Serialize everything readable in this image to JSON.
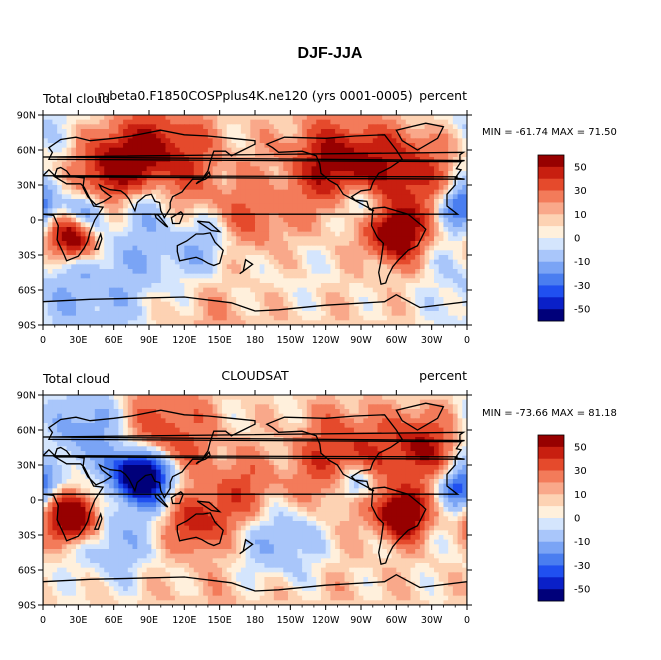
{
  "figure_title": "DJF-JJA",
  "chart_data": [
    {
      "type": "heatmap",
      "title_left": "Total cloud",
      "title_center": "n.beta0.F1850COSPplus4K.ne120 (yrs 0001-0005)",
      "title_right": "percent",
      "minmax_text": "MIN = -61.74 MAX =  71.50",
      "min": -61.74,
      "max": 71.5,
      "x_ticks": [
        "0",
        "30E",
        "60E",
        "90E",
        "120E",
        "150E",
        "180",
        "150W",
        "120W",
        "90W",
        "60W",
        "30W",
        "0"
      ],
      "y_ticks": [
        "90N",
        "60N",
        "30N",
        "0",
        "30S",
        "60S",
        "90S"
      ],
      "xlim": [
        0,
        360
      ],
      "ylim": [
        -90,
        90
      ],
      "colorbar_labels": [
        "50",
        "30",
        "10",
        "0",
        "-10",
        "-30",
        "-50"
      ],
      "contour_levels": [
        -60,
        -50,
        -40,
        -30,
        -20,
        -10,
        -5,
        0,
        5,
        10,
        20,
        30,
        40,
        50,
        60
      ],
      "anomalies": [
        {
          "lon": 95,
          "lat": 52,
          "r": 32,
          "v": 45
        },
        {
          "lon": 60,
          "lat": 42,
          "r": 22,
          "v": 40
        },
        {
          "lon": 250,
          "lat": 48,
          "r": 28,
          "v": 45
        },
        {
          "lon": 310,
          "lat": 42,
          "r": 28,
          "v": 40
        },
        {
          "lon": 25,
          "lat": -15,
          "r": 14,
          "v": 65
        },
        {
          "lon": 300,
          "lat": -12,
          "r": 16,
          "v": 60
        },
        {
          "lon": 175,
          "lat": 0,
          "r": 22,
          "v": 20
        },
        {
          "lon": 85,
          "lat": 20,
          "r": 18,
          "v": -35
        },
        {
          "lon": 35,
          "lat": 5,
          "r": 12,
          "v": -30
        },
        {
          "lon": 270,
          "lat": 15,
          "r": 14,
          "v": -35
        },
        {
          "lon": 355,
          "lat": 12,
          "r": 12,
          "v": -40
        },
        {
          "lon": 140,
          "lat": -20,
          "r": 20,
          "v": -20
        },
        {
          "lon": 100,
          "lat": -25,
          "r": 25,
          "v": -15
        },
        {
          "lon": 40,
          "lat": -60,
          "r": 40,
          "v": -20
        },
        {
          "lon": 200,
          "lat": -55,
          "r": 40,
          "v": -15
        },
        {
          "lon": 180,
          "lat": -75,
          "r": 60,
          "v": 15
        },
        {
          "lon": 0,
          "lat": 80,
          "r": 60,
          "v": -10
        }
      ]
    },
    {
      "type": "heatmap",
      "title_left": "Total cloud",
      "title_center": "CLOUDSAT",
      "title_right": "percent",
      "minmax_text": "MIN = -73.66 MAX =  81.18",
      "min": -73.66,
      "max": 81.18,
      "x_ticks": [
        "0",
        "30E",
        "60E",
        "90E",
        "120E",
        "150E",
        "180",
        "150W",
        "120W",
        "90W",
        "60W",
        "30W",
        "0"
      ],
      "y_ticks": [
        "90N",
        "60N",
        "30N",
        "0",
        "30S",
        "60S",
        "90S"
      ],
      "xlim": [
        0,
        360
      ],
      "ylim": [
        -90,
        90
      ],
      "colorbar_labels": [
        "50",
        "30",
        "10",
        "0",
        "-10",
        "-30",
        "-50"
      ],
      "contour_levels": [
        -60,
        -50,
        -40,
        -30,
        -20,
        -10,
        -5,
        0,
        5,
        10,
        20,
        30,
        40,
        50,
        60
      ],
      "anomalies": [
        {
          "lon": 90,
          "lat": 18,
          "r": 16,
          "v": -65
        },
        {
          "lon": 75,
          "lat": 25,
          "r": 14,
          "v": -50
        },
        {
          "lon": 25,
          "lat": -15,
          "r": 14,
          "v": 75
        },
        {
          "lon": 305,
          "lat": -12,
          "r": 14,
          "v": 70
        },
        {
          "lon": 130,
          "lat": -20,
          "r": 16,
          "v": 35
        },
        {
          "lon": 100,
          "lat": 55,
          "r": 30,
          "v": 30
        },
        {
          "lon": 40,
          "lat": 60,
          "r": 25,
          "v": -30
        },
        {
          "lon": 255,
          "lat": 35,
          "r": 28,
          "v": 35
        },
        {
          "lon": 320,
          "lat": 45,
          "r": 20,
          "v": 40
        },
        {
          "lon": 170,
          "lat": 5,
          "r": 22,
          "v": 25
        },
        {
          "lon": 265,
          "lat": 15,
          "r": 12,
          "v": -40
        },
        {
          "lon": 355,
          "lat": 12,
          "r": 12,
          "v": -45
        },
        {
          "lon": 200,
          "lat": -35,
          "r": 25,
          "v": -25
        },
        {
          "lon": 60,
          "lat": -35,
          "r": 25,
          "v": -20
        },
        {
          "lon": 180,
          "lat": -72,
          "r": 80,
          "v": 30
        },
        {
          "lon": 180,
          "lat": -60,
          "r": 80,
          "v": -25
        }
      ]
    }
  ],
  "continents": [
    {
      "name": "north-america",
      "pts": [
        [
          190,
          65
        ],
        [
          205,
          71
        ],
        [
          240,
          70
        ],
        [
          265,
          72
        ],
        [
          290,
          73
        ],
        [
          300,
          60
        ],
        [
          305,
          52
        ],
        [
          295,
          45
        ],
        [
          285,
          40
        ],
        [
          280,
          32
        ],
        [
          278,
          26
        ],
        [
          270,
          25
        ],
        [
          262,
          20
        ],
        [
          265,
          17
        ],
        [
          275,
          16
        ],
        [
          277,
          9
        ],
        [
          281,
          8
        ],
        [
          270,
          14
        ],
        [
          255,
          22
        ],
        [
          250,
          30
        ],
        [
          243,
          34
        ],
        [
          236,
          40
        ],
        [
          235,
          48
        ],
        [
          232,
          55
        ],
        [
          220,
          59
        ],
        [
          200,
          58
        ],
        [
          195,
          62
        ]
      ]
    },
    {
      "name": "south-america",
      "pts": [
        [
          280,
          10
        ],
        [
          290,
          11
        ],
        [
          300,
          8
        ],
        [
          310,
          5
        ],
        [
          322,
          -5
        ],
        [
          325,
          -8
        ],
        [
          318,
          -22
        ],
        [
          310,
          -26
        ],
        [
          302,
          -34
        ],
        [
          297,
          -40
        ],
        [
          293,
          -48
        ],
        [
          291,
          -54
        ],
        [
          287,
          -55
        ],
        [
          285,
          -45
        ],
        [
          287,
          -35
        ],
        [
          289,
          -20
        ],
        [
          284,
          -15
        ],
        [
          279,
          -5
        ]
      ]
    },
    {
      "name": "europe-asia",
      "pts": [
        [
          350,
          36
        ],
        [
          355,
          43
        ],
        [
          351,
          44
        ],
        [
          355,
          50
        ],
        [
          5,
          52
        ],
        [
          8,
          58
        ],
        [
          5,
          62
        ],
        [
          15,
          69
        ],
        [
          28,
          71
        ],
        [
          40,
          68
        ],
        [
          60,
          70
        ],
        [
          75,
          72
        ],
        [
          100,
          77
        ],
        [
          120,
          73
        ],
        [
          140,
          72
        ],
        [
          160,
          70
        ],
        [
          180,
          68
        ],
        [
          180,
          65
        ],
        [
          170,
          60
        ],
        [
          160,
          55
        ],
        [
          155,
          59
        ],
        [
          145,
          59
        ],
        [
          142,
          50
        ],
        [
          140,
          42
        ],
        [
          135,
          35
        ],
        [
          127,
          35
        ],
        [
          121,
          28
        ],
        [
          118,
          24
        ],
        [
          110,
          20
        ],
        [
          108,
          15
        ],
        [
          108,
          10
        ],
        [
          103,
          2
        ],
        [
          100,
          8
        ],
        [
          99,
          15
        ],
        [
          95,
          16
        ],
        [
          92,
          22
        ],
        [
          87,
          21
        ],
        [
          80,
          15
        ],
        [
          78,
          8
        ],
        [
          73,
          18
        ],
        [
          70,
          22
        ],
        [
          66,
          25
        ],
        [
          57,
          26
        ],
        [
          52,
          28
        ],
        [
          48,
          30
        ],
        [
          50,
          26
        ],
        [
          55,
          22
        ],
        [
          58,
          20
        ],
        [
          52,
          16
        ],
        [
          45,
          13
        ],
        [
          38,
          20
        ],
        [
          34,
          28
        ],
        [
          35,
          36
        ],
        [
          27,
          37
        ],
        [
          23,
          38
        ],
        [
          20,
          42
        ],
        [
          15,
          45
        ],
        [
          12,
          44
        ],
        [
          10,
          38
        ],
        [
          5,
          43
        ],
        [
          0,
          38
        ],
        [
          352,
          37
        ]
      ]
    },
    {
      "name": "africa",
      "pts": [
        [
          350,
          36
        ],
        [
          358,
          35
        ],
        [
          10,
          37
        ],
        [
          20,
          31
        ],
        [
          32,
          31
        ],
        [
          35,
          28
        ],
        [
          43,
          12
        ],
        [
          51,
          11
        ],
        [
          44,
          0
        ],
        [
          40,
          -10
        ],
        [
          38,
          -18
        ],
        [
          35,
          -24
        ],
        [
          30,
          -31
        ],
        [
          20,
          -35
        ],
        [
          18,
          -30
        ],
        [
          12,
          -17
        ],
        [
          13,
          -5
        ],
        [
          9,
          4
        ],
        [
          0,
          5
        ],
        [
          352,
          5
        ],
        [
          343,
          12
        ],
        [
          343,
          22
        ],
        [
          350,
          30
        ]
      ]
    },
    {
      "name": "australia",
      "pts": [
        [
          114,
          -22
        ],
        [
          122,
          -18
        ],
        [
          130,
          -12
        ],
        [
          136,
          -12
        ],
        [
          142,
          -11
        ],
        [
          146,
          -19
        ],
        [
          153,
          -26
        ],
        [
          150,
          -37
        ],
        [
          145,
          -39
        ],
        [
          140,
          -37
        ],
        [
          135,
          -34
        ],
        [
          130,
          -32
        ],
        [
          116,
          -35
        ],
        [
          114,
          -27
        ]
      ]
    },
    {
      "name": "greenland",
      "pts": [
        [
          300,
          77
        ],
        [
          325,
          83
        ],
        [
          340,
          80
        ],
        [
          335,
          70
        ],
        [
          318,
          60
        ],
        [
          305,
          68
        ]
      ]
    },
    {
      "name": "antarctica",
      "pts": [
        [
          0,
          -70
        ],
        [
          40,
          -68
        ],
        [
          80,
          -67
        ],
        [
          120,
          -66
        ],
        [
          160,
          -71
        ],
        [
          180,
          -78
        ],
        [
          200,
          -77
        ],
        [
          240,
          -73
        ],
        [
          290,
          -70
        ],
        [
          300,
          -64
        ],
        [
          320,
          -75
        ],
        [
          360,
          -70
        ],
        [
          360,
          -90
        ],
        [
          0,
          -90
        ]
      ]
    },
    {
      "name": "madagascar",
      "pts": [
        [
          44,
          -25
        ],
        [
          49,
          -12
        ],
        [
          50,
          -16
        ],
        [
          47,
          -25
        ]
      ]
    },
    {
      "name": "japan",
      "pts": [
        [
          130,
          31
        ],
        [
          135,
          34
        ],
        [
          141,
          41
        ],
        [
          142,
          38
        ],
        [
          138,
          35
        ],
        [
          132,
          33
        ]
      ]
    },
    {
      "name": "uk",
      "pts": [
        [
          354,
          50
        ],
        [
          358,
          51
        ],
        [
          0,
          54
        ],
        [
          357,
          58
        ],
        [
          354,
          56
        ]
      ]
    },
    {
      "name": "new-zealand",
      "pts": [
        [
          172,
          -34
        ],
        [
          178,
          -38
        ],
        [
          174,
          -41
        ],
        [
          167,
          -46
        ],
        [
          170,
          -44
        ]
      ]
    },
    {
      "name": "borneo",
      "pts": [
        [
          109,
          2
        ],
        [
          117,
          7
        ],
        [
          119,
          5
        ],
        [
          116,
          -3
        ],
        [
          110,
          -3
        ]
      ]
    },
    {
      "name": "sumatra",
      "pts": [
        [
          95,
          5
        ],
        [
          98,
          4
        ],
        [
          106,
          -6
        ],
        [
          104,
          -5
        ],
        [
          96,
          2
        ]
      ]
    },
    {
      "name": "new-guinea",
      "pts": [
        [
          131,
          -1
        ],
        [
          141,
          -2
        ],
        [
          150,
          -10
        ],
        [
          143,
          -9
        ],
        [
          137,
          -5
        ]
      ]
    }
  ]
}
